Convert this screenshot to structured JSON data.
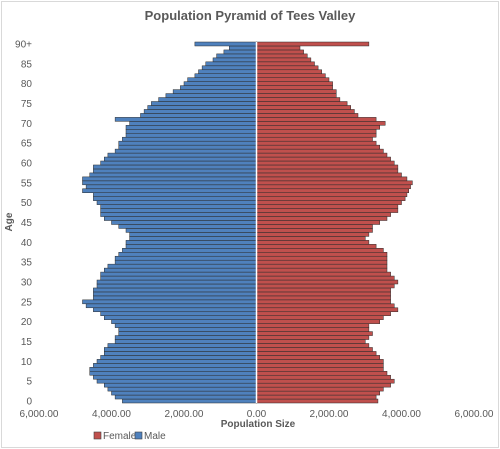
{
  "chart_data": {
    "type": "bar",
    "title": "Population Pyramid of Tees Valley",
    "xlabel": "Population Size",
    "ylabel": "Age",
    "xlim": [
      -6000,
      6000
    ],
    "x_ticks": [
      -6000,
      -4000,
      -2000,
      0,
      2000,
      4000,
      6000
    ],
    "x_tick_labels": [
      "6,000.00",
      "4,000.00",
      "2,000.00",
      "0.00",
      "2,000.00",
      "4,000.00",
      "6,000.00"
    ],
    "y_tick_labels": [
      "0",
      "5",
      "10",
      "15",
      "20",
      "25",
      "30",
      "35",
      "40",
      "45",
      "50",
      "55",
      "60",
      "65",
      "70",
      "75",
      "80",
      "85",
      "90+"
    ],
    "grid": false,
    "legend_position": "bottom-left",
    "series": [
      {
        "name": "Female",
        "color": "#c0504d",
        "values": [
          3350,
          3300,
          3400,
          3500,
          3700,
          3800,
          3700,
          3600,
          3500,
          3500,
          3500,
          3400,
          3300,
          3200,
          3100,
          3000,
          3100,
          3200,
          3100,
          3100,
          3400,
          3500,
          3700,
          3900,
          3800,
          3700,
          3700,
          3700,
          3700,
          3800,
          3900,
          3800,
          3700,
          3600,
          3600,
          3600,
          3600,
          3600,
          3500,
          3300,
          3100,
          3000,
          3100,
          3200,
          3200,
          3400,
          3600,
          3700,
          3900,
          3900,
          4000,
          4100,
          4150,
          4200,
          4250,
          4300,
          4150,
          4000,
          3900,
          3900,
          3800,
          3700,
          3600,
          3500,
          3400,
          3300,
          3200,
          3300,
          3300,
          3400,
          3550,
          3300,
          2800,
          2700,
          2600,
          2500,
          2300,
          2200,
          2200,
          2100,
          2100,
          2000,
          1900,
          1800,
          1700,
          1600,
          1500,
          1400,
          1300,
          1200,
          3100
        ]
      },
      {
        "name": "Male",
        "color": "#4f81bd",
        "values": [
          3700,
          3900,
          4000,
          4100,
          4200,
          4400,
          4500,
          4600,
          4600,
          4500,
          4400,
          4300,
          4200,
          4200,
          4100,
          3900,
          3900,
          3800,
          3800,
          3900,
          4000,
          4200,
          4300,
          4500,
          4700,
          4800,
          4500,
          4500,
          4500,
          4400,
          4400,
          4300,
          4300,
          4200,
          4100,
          3900,
          3900,
          3800,
          3700,
          3600,
          3600,
          3500,
          3500,
          3600,
          3800,
          4000,
          4200,
          4300,
          4300,
          4300,
          4400,
          4500,
          4500,
          4800,
          4700,
          4800,
          4800,
          4600,
          4500,
          4500,
          4300,
          4200,
          4100,
          3900,
          3800,
          3800,
          3700,
          3600,
          3600,
          3600,
          3500,
          3900,
          3200,
          3100,
          3000,
          2900,
          2700,
          2500,
          2300,
          2100,
          2000,
          1900,
          1700,
          1600,
          1500,
          1400,
          1200,
          1100,
          900,
          750,
          1700
        ]
      }
    ]
  }
}
